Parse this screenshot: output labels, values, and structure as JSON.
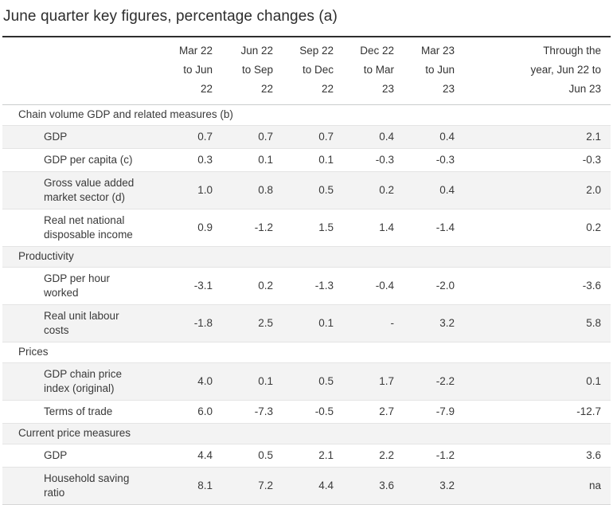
{
  "title": "June quarter key figures, percentage changes (a)",
  "table": {
    "column_headers": [
      "Mar 22\nto Jun\n22",
      "Jun 22\nto Sep\n22",
      "Sep 22\nto Dec\n22",
      "Dec 22\nto Mar\n23",
      "Mar 23\nto Jun\n23",
      "Through the\nyear, Jun 22 to\nJun 23"
    ],
    "rows": [
      {
        "type": "section",
        "label": "Chain volume GDP and related measures (b)"
      },
      {
        "type": "data",
        "label": "GDP",
        "values": [
          "0.7",
          "0.7",
          "0.7",
          "0.4",
          "0.4",
          "2.1"
        ]
      },
      {
        "type": "data",
        "label": "GDP per capita (c)",
        "values": [
          "0.3",
          "0.1",
          "0.1",
          "-0.3",
          "-0.3",
          "-0.3"
        ]
      },
      {
        "type": "data",
        "label": "Gross value added\nmarket sector (d)",
        "values": [
          "1.0",
          "0.8",
          "0.5",
          "0.2",
          "0.4",
          "2.0"
        ]
      },
      {
        "type": "data",
        "label": "Real net national\ndisposable income",
        "values": [
          "0.9",
          "-1.2",
          "1.5",
          "1.4",
          "-1.4",
          "0.2"
        ]
      },
      {
        "type": "section",
        "label": "Productivity"
      },
      {
        "type": "data",
        "label": "GDP per hour\nworked",
        "values": [
          "-3.1",
          "0.2",
          "-1.3",
          "-0.4",
          "-2.0",
          "-3.6"
        ]
      },
      {
        "type": "data",
        "label": "Real unit labour\ncosts",
        "values": [
          "-1.8",
          "2.5",
          "0.1",
          "-",
          "3.2",
          "5.8"
        ]
      },
      {
        "type": "section",
        "label": "Prices"
      },
      {
        "type": "data",
        "label": "GDP chain price\nindex (original)",
        "values": [
          "4.0",
          "0.1",
          "0.5",
          "1.7",
          "-2.2",
          "0.1"
        ]
      },
      {
        "type": "data",
        "label": "Terms of trade",
        "values": [
          "6.0",
          "-7.3",
          "-0.5",
          "2.7",
          "-7.9",
          "-12.7"
        ]
      },
      {
        "type": "section",
        "label": "Current price measures"
      },
      {
        "type": "data",
        "label": "GDP",
        "values": [
          "4.4",
          "0.5",
          "2.1",
          "2.2",
          "-1.2",
          "3.6"
        ]
      },
      {
        "type": "data",
        "label": "Household saving\nratio",
        "values": [
          "8.1",
          "7.2",
          "4.4",
          "3.6",
          "3.2",
          "na"
        ]
      }
    ]
  },
  "colors": {
    "background": "#ffffff",
    "text": "#333333",
    "title_rule": "#2e2e2e",
    "header_rule": "#c9cdcd",
    "row_rule": "#e4e4e4",
    "stripe": "#f3f3f3"
  },
  "chart_data": {
    "type": "table",
    "title": "June quarter key figures, percentage changes (a)",
    "columns": [
      "Measure",
      "Mar 22 to Jun 22",
      "Jun 22 to Sep 22",
      "Sep 22 to Dec 22",
      "Dec 22 to Mar 23",
      "Mar 23 to Jun 23",
      "Through the year, Jun 22 to Jun 23"
    ],
    "sections": [
      {
        "name": "Chain volume GDP and related measures (b)",
        "rows": [
          {
            "measure": "GDP",
            "values": [
              0.7,
              0.7,
              0.7,
              0.4,
              0.4,
              2.1
            ]
          },
          {
            "measure": "GDP per capita (c)",
            "values": [
              0.3,
              0.1,
              0.1,
              -0.3,
              -0.3,
              -0.3
            ]
          },
          {
            "measure": "Gross value added market sector (d)",
            "values": [
              1.0,
              0.8,
              0.5,
              0.2,
              0.4,
              2.0
            ]
          },
          {
            "measure": "Real net national disposable income",
            "values": [
              0.9,
              -1.2,
              1.5,
              1.4,
              -1.4,
              0.2
            ]
          }
        ]
      },
      {
        "name": "Productivity",
        "rows": [
          {
            "measure": "GDP per hour worked",
            "values": [
              -3.1,
              0.2,
              -1.3,
              -0.4,
              -2.0,
              -3.6
            ]
          },
          {
            "measure": "Real unit labour costs",
            "values": [
              -1.8,
              2.5,
              0.1,
              null,
              3.2,
              5.8
            ]
          }
        ]
      },
      {
        "name": "Prices",
        "rows": [
          {
            "measure": "GDP chain price index (original)",
            "values": [
              4.0,
              0.1,
              0.5,
              1.7,
              -2.2,
              0.1
            ]
          },
          {
            "measure": "Terms of trade",
            "values": [
              6.0,
              -7.3,
              -0.5,
              2.7,
              -7.9,
              -12.7
            ]
          }
        ]
      },
      {
        "name": "Current price measures",
        "rows": [
          {
            "measure": "GDP",
            "values": [
              4.4,
              0.5,
              2.1,
              2.2,
              -1.2,
              3.6
            ]
          },
          {
            "measure": "Household saving ratio",
            "values": [
              8.1,
              7.2,
              4.4,
              3.6,
              3.2,
              "na"
            ]
          }
        ]
      }
    ]
  }
}
